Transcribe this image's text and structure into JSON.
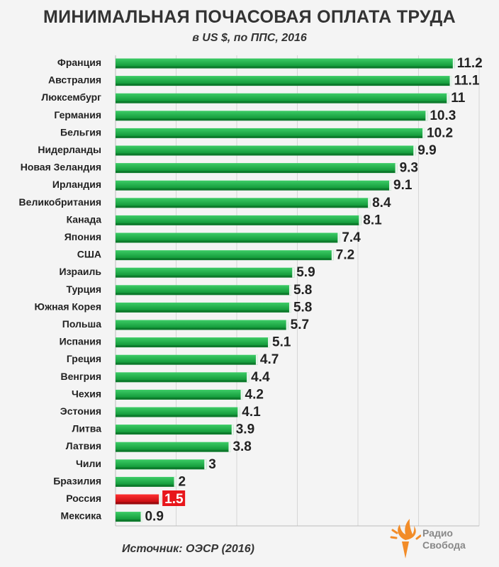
{
  "chart_data": {
    "type": "bar",
    "orientation": "horizontal",
    "title": "МИНИМАЛЬНАЯ ПОЧАСОВАЯ ОПЛАТА ТРУДА",
    "subtitle": "в US $, по ППС, 2016",
    "categories": [
      "Франция",
      "Австралия",
      "Люксембург",
      "Германия",
      "Бельгия",
      "Нидерланды",
      "Новая Зеландия",
      "Ирландия",
      "Великобритания",
      "Канада",
      "Япония",
      "США",
      "Израиль",
      "Турция",
      "Южная Корея",
      "Польша",
      "Испания",
      "Греция",
      "Венгрия",
      "Чехия",
      "Эстония",
      "Литва",
      "Латвия",
      "Чили",
      "Бразилия",
      "Россия",
      "Мексика"
    ],
    "values": [
      11.2,
      11.1,
      11,
      10.3,
      10.2,
      9.9,
      9.3,
      9.1,
      8.4,
      8.1,
      7.4,
      7.2,
      5.9,
      5.8,
      5.8,
      5.7,
      5.1,
      4.7,
      4.4,
      4.2,
      4.1,
      3.9,
      3.8,
      3,
      2,
      1.5,
      0.9
    ],
    "value_labels": [
      "11.2",
      "11.1",
      "11",
      "10.3",
      "10.2",
      "9.9",
      "9.3",
      "9.1",
      "8.4",
      "8.1",
      "7.4",
      "7.2",
      "5.9",
      "5.8",
      "5.8",
      "5.7",
      "5.1",
      "4.7",
      "4.4",
      "4.2",
      "4.1",
      "3.9",
      "3.8",
      "3",
      "2",
      "1.5",
      "0.9"
    ],
    "highlight": "Россия",
    "xlim": [
      0,
      12
    ],
    "grid": true,
    "colors": {
      "bar": "#1fb14a",
      "highlight": "#e8161b",
      "grid": "#d6d6d6"
    }
  },
  "source": "Источник:  ОЭСР (2016)",
  "logo": {
    "line1": "Радио",
    "line2": "Свобода",
    "icon": "torch-icon",
    "color": "#f28c28"
  }
}
